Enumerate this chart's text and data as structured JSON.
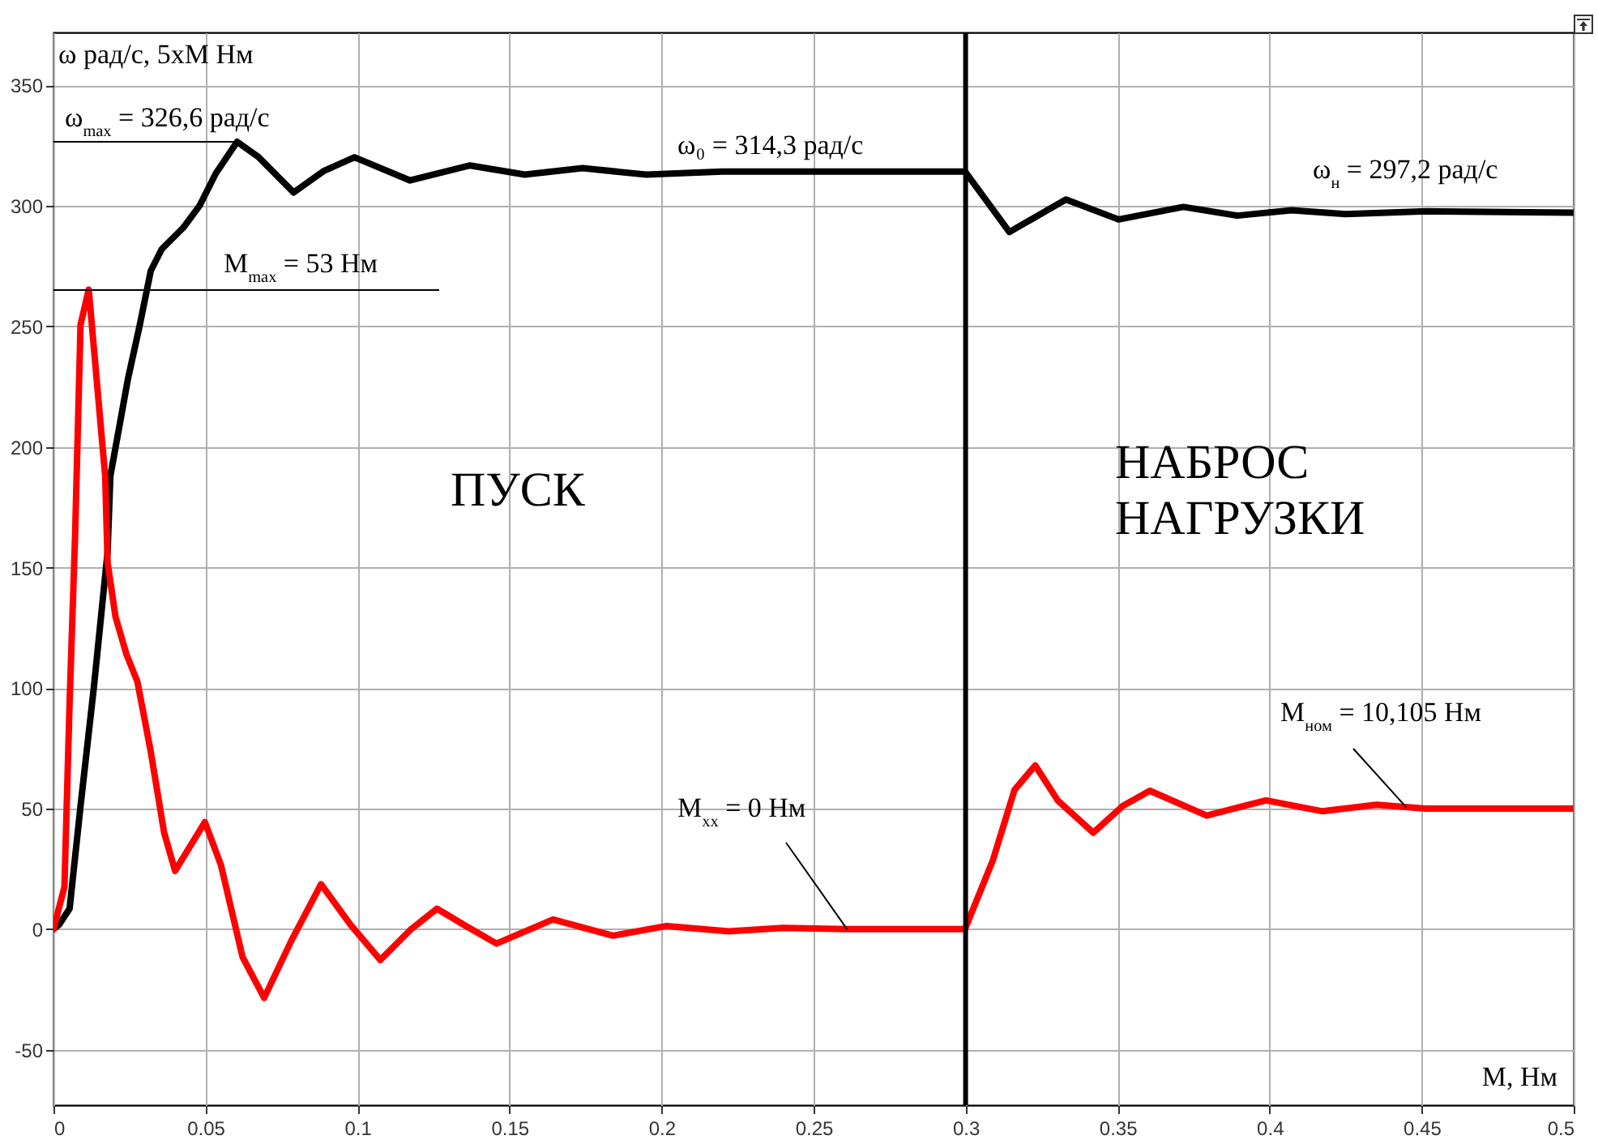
{
  "chart_data": {
    "type": "line",
    "xlabel": "М, Нм",
    "ylabel": "ω рад/с, 5xM Нм",
    "xlim": [
      0,
      0.5
    ],
    "ylim": [
      -73,
      372
    ],
    "xticks": [
      0,
      0.05,
      0.1,
      0.15,
      0.2,
      0.25,
      0.3,
      0.35,
      0.4,
      0.45,
      0.5
    ],
    "yticks": [
      -50,
      0,
      50,
      100,
      150,
      200,
      250,
      300,
      350
    ],
    "grid": true,
    "legend": false,
    "line_style": "solid",
    "marker": "none",
    "series": [
      {
        "color": "#000000",
        "x": [
          0,
          0.0018,
          0.0053,
          0.0089,
          0.0133,
          0.0178,
          0.0187,
          0.0245,
          0.0284,
          0.032,
          0.0356,
          0.0427,
          0.048,
          0.0534,
          0.0604,
          0.0675,
          0.079,
          0.089,
          0.099,
          0.1173,
          0.137,
          0.155,
          0.174,
          0.195,
          0.22,
          0.26,
          0.2998,
          0.3144,
          0.333,
          0.3503,
          0.3716,
          0.3894,
          0.4072,
          0.425,
          0.4516,
          0.5
        ],
        "values": [
          0,
          1.8,
          8.5,
          51.1,
          100.5,
          156.5,
          187.9,
          228.3,
          250.7,
          273.1,
          282.1,
          291,
          300,
          313.5,
          326.6,
          320.2,
          305.6,
          314.6,
          320.2,
          310.6,
          316.8,
          313,
          315.7,
          313,
          314.3,
          314.3,
          314.3,
          289.2,
          302.7,
          294.4,
          299.6,
          296,
          298.2,
          296.6,
          297.8,
          297.2
        ]
      },
      {
        "color": "#ff0000",
        "x": [
          0,
          0.0036,
          0.0053,
          0.0071,
          0.0089,
          0.0116,
          0.0142,
          0.017,
          0.0178,
          0.0204,
          0.024,
          0.0276,
          0.032,
          0.0364,
          0.04,
          0.0498,
          0.0551,
          0.0622,
          0.0693,
          0.0782,
          0.088,
          0.0977,
          0.1075,
          0.1173,
          0.1261,
          0.135,
          0.1457,
          0.1643,
          0.184,
          0.2017,
          0.2221,
          0.24,
          0.2611,
          0.2998,
          0.309,
          0.3161,
          0.3229,
          0.3303,
          0.342,
          0.3517,
          0.3606,
          0.3793,
          0.3988,
          0.4174,
          0.4352,
          0.4512,
          0.5
        ],
        "values": [
          0,
          17.5,
          93.8,
          163,
          250.7,
          265.3,
          228,
          187.9,
          152,
          129.6,
          114,
          102.7,
          73.6,
          40,
          24.2,
          44.4,
          26.5,
          -11.6,
          -28.5,
          -4.9,
          18.6,
          1.8,
          -12.8,
          -0.4,
          8.5,
          1.8,
          -6,
          4,
          -2.7,
          1.3,
          -0.9,
          0.5,
          0,
          0,
          28.7,
          57.8,
          67.9,
          53.4,
          40,
          51.1,
          57.4,
          47.1,
          53.4,
          48.9,
          51.6,
          50,
          50
        ]
      }
    ],
    "ref_lines": [
      {
        "axis": "x",
        "value": 0.3,
        "color": "#000000"
      }
    ],
    "annotations": [
      {
        "text": "ω$_{max}$ = 326,6 рад/с",
        "x": 0.0604,
        "y": 326.6
      },
      "М$_{max}$ = 53 Нм",
      "ω₀ = 314,3 рад/с",
      "ω$_{н}$ = 297,2 рад/с",
      "ПУСК",
      "НАБРОС НАГРУЗКИ",
      {
        "text": "М$_{хх}$ = 0 Нм",
        "x": 0.261,
        "y": 0
      },
      {
        "text": "М$_{ном}$ = 10,105 Нм",
        "x": 0.445,
        "y": 50.5
      }
    ]
  }
}
